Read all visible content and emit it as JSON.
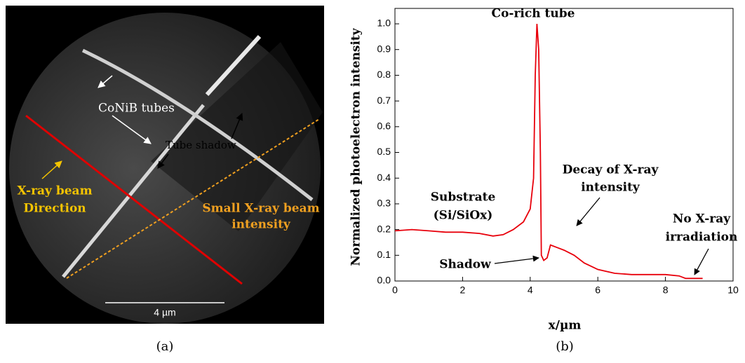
{
  "image_panel": {
    "labels": {
      "tubes": "CoNiB tubes",
      "shadow": "Tube shadow",
      "beam1": "X-ray beam",
      "beam2": "Direction",
      "small1": "Small X-ray beam",
      "small2": "intensity",
      "scale": "4 µm"
    }
  },
  "captions": [
    "(a)",
    "(b)"
  ],
  "chart_data": {
    "type": "line",
    "x_label": "x/µm",
    "y_label": "Normalized photoelectron intensity",
    "annotations": {
      "peak": "Co-rich tube",
      "sub1": "Substrate",
      "sub2": "(Si/SiOx)",
      "decay1": "Decay of X-ray",
      "decay2": "intensity",
      "none1": "No X-ray",
      "none2": "irradiation",
      "shadow": "Shadow"
    },
    "xlim": [
      0,
      10
    ],
    "xticks": [
      0,
      2,
      4,
      6,
      8,
      10
    ],
    "ylim": [
      0,
      1.06
    ],
    "yticks": [
      {
        "value": 0,
        "label": "0.0"
      },
      0.1,
      0.2,
      0.3,
      0.4,
      0.5,
      0.6,
      0.7,
      0.8,
      0.9,
      {
        "value": 1,
        "label": "1.0"
      }
    ],
    "series": [
      {
        "name": "intensity",
        "color": "#e8000b",
        "x": [
          0,
          0.5,
          1,
          1.5,
          2,
          2.5,
          2.9,
          3.2,
          3.5,
          3.8,
          4.0,
          4.1,
          4.15,
          4.2,
          4.25,
          4.3,
          4.33,
          4.4,
          4.5,
          4.6,
          4.8,
          5.0,
          5.3,
          5.6,
          6.0,
          6.5,
          7,
          7.5,
          8,
          8.4,
          8.6,
          9.1
        ],
        "values": [
          0.195,
          0.2,
          0.195,
          0.19,
          0.19,
          0.185,
          0.175,
          0.18,
          0.2,
          0.23,
          0.28,
          0.4,
          0.8,
          1.0,
          0.9,
          0.5,
          0.1,
          0.08,
          0.09,
          0.14,
          0.13,
          0.12,
          0.1,
          0.07,
          0.045,
          0.03,
          0.025,
          0.025,
          0.025,
          0.02,
          0.01,
          0.01
        ]
      }
    ]
  }
}
